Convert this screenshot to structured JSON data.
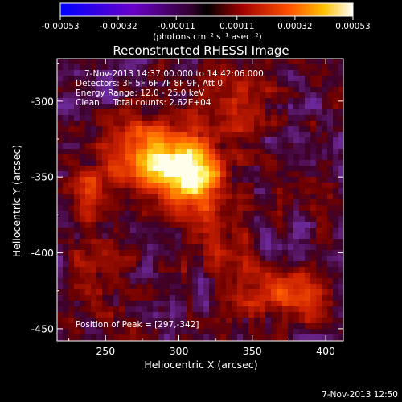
{
  "colorbar": {
    "ticks": [
      "-0.00053",
      "-0.00032",
      "-0.00011",
      "0.00011",
      "0.00032",
      "0.00053"
    ],
    "unit_label": "(photons cm⁻² s⁻¹ asec⁻²)",
    "range": [
      -0.00053,
      0.00053
    ]
  },
  "footer": {
    "timestamp": "7-Nov-2013 12:50"
  },
  "chart_data": {
    "type": "heatmap",
    "title": "Reconstructed RHESSI Image",
    "xlabel": "Heliocentric X (arcsec)",
    "ylabel": "Heliocentric Y (arcsec)",
    "xlim": [
      217,
      412
    ],
    "ylim": [
      -458,
      -272
    ],
    "x_ticks": [
      "250",
      "300",
      "350",
      "400"
    ],
    "y_ticks": [
      "-300",
      "-350",
      "-400",
      "-450"
    ],
    "annotations": [
      "7-Nov-2013 14:37:00.000 to 14:42:06.000",
      "Detectors: 3F 5F 6F 7F 8F 9F, Att 0",
      "Energy Range: 12.0 - 25.0 keV",
      "Clean     Total counts: 2.62E+04"
    ],
    "peak_label": "Position of Peak = [297,-342]",
    "peak": [
      297,
      -342
    ],
    "hotspots": [
      {
        "x": 297,
        "y": -342,
        "amp": 1.0,
        "sigma": 16
      },
      {
        "x": 318,
        "y": -352,
        "amp": 0.55,
        "sigma": 14
      },
      {
        "x": 268,
        "y": -332,
        "amp": 0.5,
        "sigma": 16
      },
      {
        "x": 385,
        "y": -428,
        "amp": 0.55,
        "sigma": 11
      },
      {
        "x": 355,
        "y": -425,
        "amp": 0.4,
        "sigma": 13
      },
      {
        "x": 240,
        "y": -362,
        "amp": 0.35,
        "sigma": 12
      },
      {
        "x": 340,
        "y": -300,
        "amp": 0.35,
        "sigma": 16
      },
      {
        "x": 245,
        "y": -412,
        "amp": 0.25,
        "sigma": 14
      },
      {
        "x": 325,
        "y": -392,
        "amp": 0.3,
        "sigma": 14
      },
      {
        "x": 395,
        "y": -365,
        "amp": 0.2,
        "sigma": 13
      }
    ],
    "colormap": "RHESSI red-temperature with blue-purple negatives"
  }
}
